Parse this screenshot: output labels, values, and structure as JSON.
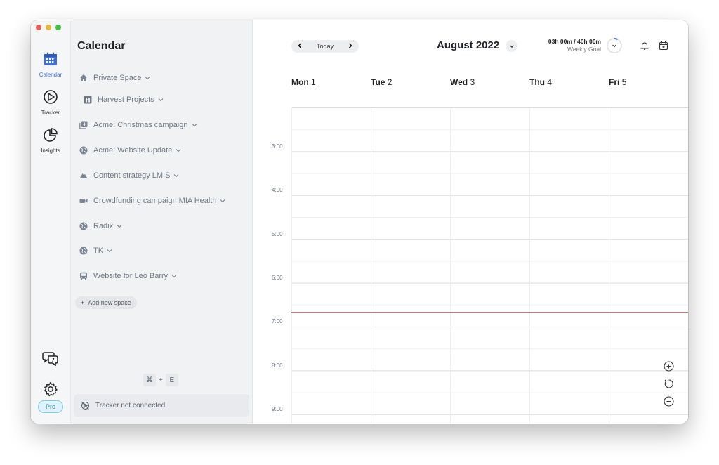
{
  "rail": {
    "items": [
      {
        "label": "Calendar",
        "icon": "calendar-icon",
        "active": true
      },
      {
        "label": "Tracker",
        "icon": "tracker-icon",
        "active": false
      },
      {
        "label": "Insights",
        "icon": "insights-icon",
        "active": false
      }
    ],
    "help_icon": "help-chat-icon",
    "settings_icon": "gear-icon",
    "pro_label": "Pro"
  },
  "sidebar": {
    "title": "Calendar",
    "private_space": "Private Space",
    "harvest_projects": "Harvest Projects",
    "projects": [
      {
        "label": "Acme: Christmas campaign",
        "icon": "add-square-icon"
      },
      {
        "label": "Acme: Website Update",
        "icon": "globe-icon"
      },
      {
        "label": "Content strategy LMIS",
        "icon": "mountain-icon"
      },
      {
        "label": "Crowdfunding campaign MIA Health",
        "icon": "video-icon"
      },
      {
        "label": "Radix",
        "icon": "globe-icon"
      },
      {
        "label": "TK",
        "icon": "globe-icon"
      },
      {
        "label": "Website for Leo Barry",
        "icon": "bus-icon"
      }
    ],
    "add_space": "Add new space",
    "shortcut": {
      "key1": "⌘",
      "plus": "+",
      "key2": "E"
    },
    "tracker_status": "Tracker not connected"
  },
  "header": {
    "today_label": "Today",
    "month_label": "August 2022",
    "goal_main": "03h 00m / 40h 00m",
    "goal_sub": "Weekly Goal",
    "goal_progress": 0.075
  },
  "days": [
    {
      "name": "Mon",
      "num": "1"
    },
    {
      "name": "Tue",
      "num": "2"
    },
    {
      "name": "Wed",
      "num": "3"
    },
    {
      "name": "Thu",
      "num": "4"
    },
    {
      "name": "Fri",
      "num": "5"
    }
  ],
  "times": [
    "3:00",
    "4:00",
    "5:00",
    "6:00",
    "7:00",
    "8:00",
    "9:00"
  ],
  "colors": {
    "accent": "#3f6fd6",
    "now_line": "#e26a6a",
    "sidebar_bg": "#f1f2f3"
  }
}
